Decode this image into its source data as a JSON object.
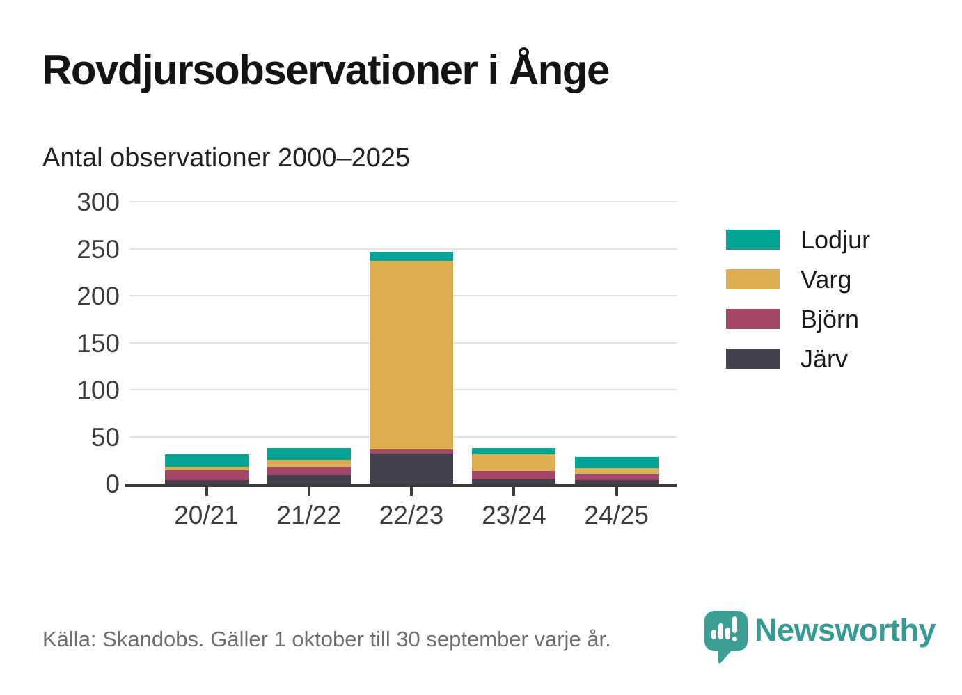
{
  "title": "Rovdjursobservationer i Ånge",
  "subtitle": "Antal observationer 2000–2025",
  "footer": {
    "source": "Källa: Skandobs. Gäller 1 oktober till 30 september varje år."
  },
  "logo": {
    "wordmark": "Newsworthy",
    "color": "#379b93"
  },
  "colors": {
    "lodjur": "#03a597",
    "varg": "#ddaf50",
    "bjorn": "#a54768",
    "jarv": "#45404f",
    "gridline": "#e2e2e2",
    "axis": "#3b3b3b",
    "text": "#3d3d3d"
  },
  "chart_data": {
    "type": "bar",
    "stacked": true,
    "title": "Rovdjursobservationer i Ånge",
    "subtitle": "Antal observationer 2000–2025",
    "categories": [
      "20/21",
      "21/22",
      "22/23",
      "23/24",
      "24/25"
    ],
    "series": [
      {
        "name": "Lodjur",
        "color": "#03a597",
        "values": [
          13,
          13,
          10,
          7,
          12
        ]
      },
      {
        "name": "Varg",
        "color": "#ddaf50",
        "values": [
          4,
          7,
          201,
          18,
          6
        ]
      },
      {
        "name": "Björn",
        "color": "#a54768",
        "values": [
          10,
          9,
          4,
          8,
          6
        ]
      },
      {
        "name": "Järv",
        "color": "#45404f",
        "values": [
          4,
          9,
          32,
          5,
          4
        ]
      }
    ],
    "totals": [
      31,
      38,
      247,
      38,
      28
    ],
    "xlabel": "",
    "ylabel": "",
    "ylim": [
      0,
      300
    ],
    "yticks": [
      0,
      50,
      100,
      150,
      200,
      250,
      300
    ],
    "grid": true,
    "legend_position": "right",
    "stack_order_bottom_to_top": [
      "Järv",
      "Björn",
      "Varg",
      "Lodjur"
    ]
  }
}
